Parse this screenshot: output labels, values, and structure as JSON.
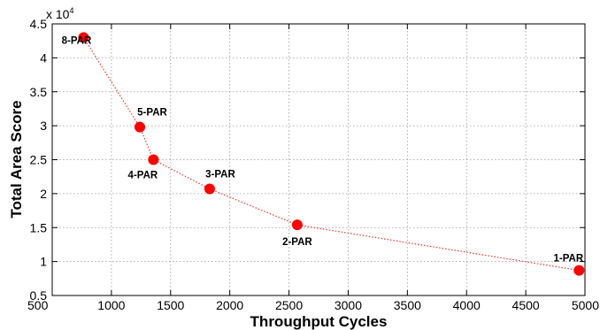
{
  "chart_data": {
    "type": "scatter",
    "xlabel": "Throughput Cycles",
    "ylabel": "Total Area Score",
    "y_scale_label": "x 10",
    "y_scale_exponent": "4",
    "xlim": [
      500,
      5000
    ],
    "ylim": [
      0.5,
      4.5
    ],
    "x_ticks": [
      "500",
      "1000",
      "1500",
      "2000",
      "2500",
      "3000",
      "3500",
      "4000",
      "4500",
      "5000"
    ],
    "y_ticks": [
      "0.5",
      "1",
      "1.5",
      "2",
      "2.5",
      "3",
      "3.5",
      "4",
      "4.5"
    ],
    "grid": true,
    "points": [
      {
        "label": "8-PAR",
        "x": 765,
        "y": 4.3
      },
      {
        "label": "5-PAR",
        "x": 1240,
        "y": 2.98
      },
      {
        "label": "4-PAR",
        "x": 1355,
        "y": 2.5
      },
      {
        "label": "3-PAR",
        "x": 1830,
        "y": 2.07
      },
      {
        "label": "2-PAR",
        "x": 2570,
        "y": 1.54
      },
      {
        "label": "1-PAR",
        "x": 4950,
        "y": 0.87
      }
    ],
    "colors": {
      "marker": "#ff0000",
      "line": "#e8352e"
    }
  }
}
